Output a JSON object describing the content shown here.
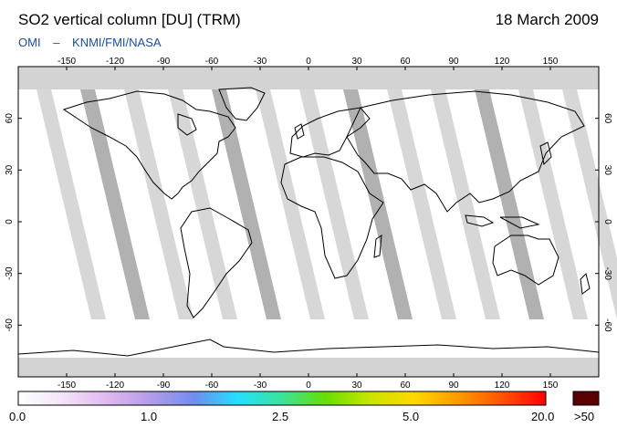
{
  "header": {
    "title": "SO2 vertical column [DU] (TRM)",
    "date": "18 March 2009",
    "credit_left": "OMI",
    "credit_sep": "–",
    "credit_right": "KNMI/FMI/NASA"
  },
  "map": {
    "lon_ticks": [
      "-150",
      "-120",
      "-90",
      "-60",
      "-30",
      "0",
      "30",
      "60",
      "90",
      "120",
      "150"
    ],
    "lat_ticks_left": [
      "60",
      "30",
      "0",
      "-30",
      "-60"
    ],
    "lat_ticks_right": [
      "60",
      "30",
      "0",
      "-30",
      "-60"
    ],
    "colors": {
      "no_data": "#d3d3d3",
      "swath_edge": "#a9a9a9",
      "coast": "#000000",
      "background": "#ffffff"
    }
  },
  "colorbar": {
    "labels": [
      "0.0",
      "1.0",
      "2.5",
      "5.0",
      "20.0",
      ">50"
    ],
    "stops": [
      "#ffffff",
      "#f3e4f8",
      "#e2b8f0",
      "#b49ce8",
      "#6f8ef0",
      "#22e0ff",
      "#3be29a",
      "#66e000",
      "#c9e400",
      "#ffd800",
      "#ff9a00",
      "#ff5400",
      "#ff0000"
    ],
    "over_color": "#5a0000"
  }
}
